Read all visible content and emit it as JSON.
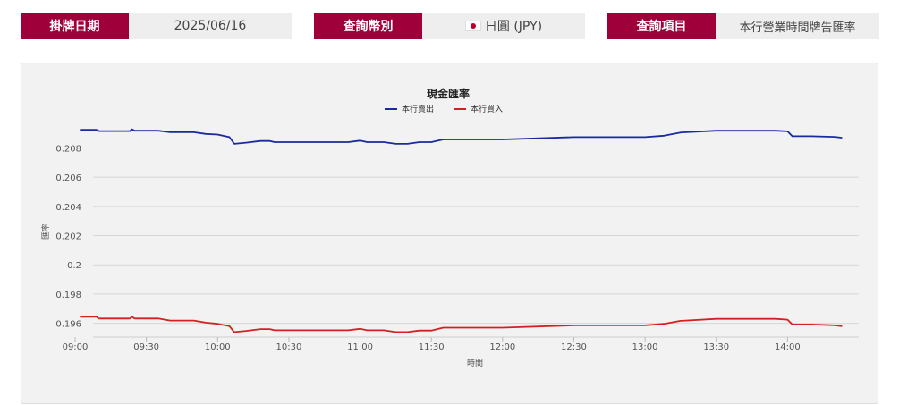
{
  "filters": {
    "date_label": "掛牌日期",
    "date_value": "2025/06/16",
    "currency_label": "查詢幣別",
    "currency_value": "日圓 (JPY)",
    "currency_flag": "japan-flag-icon",
    "item_label": "查詢項目",
    "item_value": "本行營業時間牌告匯率"
  },
  "colors": {
    "accent": "#a0003a",
    "sell": "#1a2aa0",
    "buy": "#d42020"
  },
  "chart_data": {
    "type": "line",
    "title": "現金匯率",
    "xlabel": "時間",
    "ylabel": "匯率",
    "x_ticks": [
      "09:00",
      "09:30",
      "10:00",
      "10:30",
      "11:00",
      "11:30",
      "12:00",
      "12:30",
      "13:00",
      "13:30",
      "14:00"
    ],
    "y_ticks": [
      "0.196",
      "0.198",
      "0.2",
      "0.202",
      "0.204",
      "0.206",
      "0.208"
    ],
    "ylim": [
      0.1953,
      0.2095
    ],
    "legend_position": "top-center",
    "grid": true,
    "series": [
      {
        "name": "本行賣出",
        "color": "#1a2aa0",
        "points": [
          [
            "09:02",
            0.20924
          ],
          [
            "09:09",
            0.20924
          ],
          [
            "09:10",
            0.20916
          ],
          [
            "09:23",
            0.20916
          ],
          [
            "09:24",
            0.20928
          ],
          [
            "09:25",
            0.20918
          ],
          [
            "09:35",
            0.20918
          ],
          [
            "09:40",
            0.20908
          ],
          [
            "09:50",
            0.20908
          ],
          [
            "09:55",
            0.20896
          ],
          [
            "10:00",
            0.20892
          ],
          [
            "10:05",
            0.20874
          ],
          [
            "10:07",
            0.20828
          ],
          [
            "10:12",
            0.20836
          ],
          [
            "10:18",
            0.20848
          ],
          [
            "10:22",
            0.20848
          ],
          [
            "10:24",
            0.2084
          ],
          [
            "10:55",
            0.2084
          ],
          [
            "11:00",
            0.2085
          ],
          [
            "11:03",
            0.2084
          ],
          [
            "11:10",
            0.2084
          ],
          [
            "11:15",
            0.20828
          ],
          [
            "11:20",
            0.20828
          ],
          [
            "11:25",
            0.2084
          ],
          [
            "11:30",
            0.2084
          ],
          [
            "11:35",
            0.20858
          ],
          [
            "12:00",
            0.20858
          ],
          [
            "12:30",
            0.20874
          ],
          [
            "13:00",
            0.20874
          ],
          [
            "13:08",
            0.20884
          ],
          [
            "13:15",
            0.20906
          ],
          [
            "13:30",
            0.20918
          ],
          [
            "13:50",
            0.20918
          ],
          [
            "13:55",
            0.20918
          ],
          [
            "14:00",
            0.20914
          ],
          [
            "14:02",
            0.2088
          ],
          [
            "14:10",
            0.2088
          ],
          [
            "14:20",
            0.20876
          ],
          [
            "14:23",
            0.2087
          ]
        ]
      },
      {
        "name": "本行買入",
        "color": "#d42020",
        "points": [
          [
            "09:02",
            0.19644
          ],
          [
            "09:09",
            0.19644
          ],
          [
            "09:10",
            0.19632
          ],
          [
            "09:23",
            0.19632
          ],
          [
            "09:24",
            0.19644
          ],
          [
            "09:25",
            0.19632
          ],
          [
            "09:35",
            0.19632
          ],
          [
            "09:40",
            0.19618
          ],
          [
            "09:50",
            0.19618
          ],
          [
            "09:55",
            0.19604
          ],
          [
            "10:00",
            0.19596
          ],
          [
            "10:05",
            0.1958
          ],
          [
            "10:07",
            0.1954
          ],
          [
            "10:12",
            0.19548
          ],
          [
            "10:18",
            0.1956
          ],
          [
            "10:22",
            0.1956
          ],
          [
            "10:24",
            0.19552
          ],
          [
            "10:55",
            0.19552
          ],
          [
            "11:00",
            0.19562
          ],
          [
            "11:03",
            0.19552
          ],
          [
            "11:10",
            0.19552
          ],
          [
            "11:15",
            0.1954
          ],
          [
            "11:20",
            0.1954
          ],
          [
            "11:25",
            0.1955
          ],
          [
            "11:30",
            0.1955
          ],
          [
            "11:35",
            0.1957
          ],
          [
            "12:00",
            0.1957
          ],
          [
            "12:30",
            0.19586
          ],
          [
            "13:00",
            0.19586
          ],
          [
            "13:08",
            0.19596
          ],
          [
            "13:15",
            0.19616
          ],
          [
            "13:30",
            0.1963
          ],
          [
            "13:50",
            0.1963
          ],
          [
            "13:55",
            0.1963
          ],
          [
            "14:00",
            0.19624
          ],
          [
            "14:02",
            0.19592
          ],
          [
            "14:10",
            0.19592
          ],
          [
            "14:20",
            0.19586
          ],
          [
            "14:23",
            0.1958
          ]
        ]
      }
    ]
  }
}
